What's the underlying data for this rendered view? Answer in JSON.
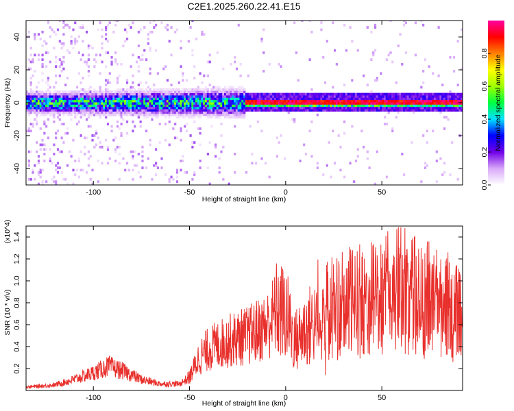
{
  "title": "C2E1.2025.260.22.41.E15",
  "chart_data": [
    {
      "type": "heatmap",
      "title": "C2E1.2025.260.22.41.E15",
      "xlabel": "Height of straight line (km)",
      "ylabel": "Frequency (Hz)",
      "xlim": [
        -135,
        92
      ],
      "ylim": [
        -50,
        50
      ],
      "xticks": [
        -100,
        -50,
        0,
        50
      ],
      "yticks": [
        -40,
        -20,
        0,
        20,
        40
      ],
      "xtick_labels": [
        "-100",
        "-50",
        "0",
        "50"
      ],
      "ytick_labels": [
        "-40",
        "-20",
        "0",
        "20",
        "40"
      ],
      "colorbar": {
        "label": "Normalized spectral amplitude",
        "range": [
          0,
          1
        ],
        "ticks": [
          "0.0",
          "0.2",
          "0.4",
          "0.6",
          "0.8"
        ],
        "colormap": [
          "#ffffff",
          "#d8a8f8",
          "#7000e8",
          "#0000ff",
          "#00e0ff",
          "#00ff40",
          "#a0ff00",
          "#ffff00",
          "#ff8000",
          "#ff0000",
          "#ff00a0"
        ]
      },
      "bands": [
        {
          "x_start": -135,
          "x_end": -22,
          "center_hz": 0,
          "width_hz": 8,
          "amplitude": 0.3
        },
        {
          "x_start": -22,
          "x_end": 92,
          "center_hz": 0,
          "width_hz": 4,
          "amplitude": 0.95
        }
      ]
    },
    {
      "type": "line",
      "xlabel": "Height of straight line (km)",
      "ylabel": "SNR (10 * v/v)",
      "y_multiplier": "(x10^4)",
      "xlim": [
        -135,
        92
      ],
      "ylim": [
        0,
        1.5
      ],
      "xticks": [
        -100,
        -50,
        0,
        50
      ],
      "yticks": [
        0.2,
        0.4,
        0.6,
        0.8,
        1.0,
        1.2,
        1.4
      ],
      "xtick_labels": [
        "-100",
        "-50",
        "0",
        "50"
      ],
      "ytick_labels": [
        "0.2",
        "0.4",
        "0.6",
        "0.8",
        "1.0",
        "1.2",
        "1.4"
      ],
      "series": [
        {
          "name": "SNR",
          "color": "#e8302c",
          "x": [
            -135,
            -120,
            -110,
            -100,
            -92,
            -85,
            -75,
            -65,
            -55,
            -50,
            -45,
            -40,
            -30,
            -20,
            -10,
            -5,
            0,
            5,
            10,
            20,
            30,
            40,
            50,
            60,
            70,
            80,
            92
          ],
          "y": [
            0.03,
            0.05,
            0.1,
            0.16,
            0.22,
            0.18,
            0.1,
            0.06,
            0.06,
            0.12,
            0.3,
            0.38,
            0.45,
            0.5,
            0.58,
            0.72,
            0.7,
            0.45,
            0.55,
            0.7,
            0.78,
            0.82,
            0.85,
            0.95,
            0.82,
            0.85,
            0.65
          ]
        }
      ]
    }
  ]
}
